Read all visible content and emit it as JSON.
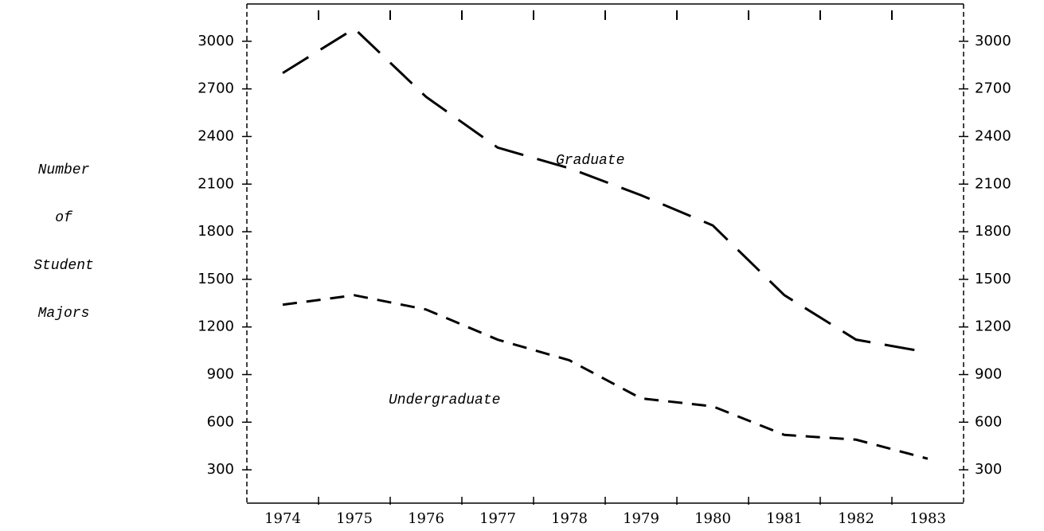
{
  "chart_data": {
    "type": "line",
    "ylabel": [
      "Number",
      "of",
      "Student",
      "Majors"
    ],
    "categories": [
      "1974",
      "1975",
      "1976",
      "1977",
      "1978",
      "1979",
      "1980",
      "1981",
      "1982",
      "1983"
    ],
    "series": [
      {
        "name": "Graduate",
        "color": "#000000",
        "dash": "long",
        "values": [
          2800,
          3080,
          2650,
          2330,
          2200,
          2030,
          1840,
          1400,
          1120,
          1040
        ]
      },
      {
        "name": "Undergraduate",
        "color": "#000000",
        "dash": "short",
        "values": [
          1340,
          1400,
          1310,
          1120,
          990,
          750,
          700,
          520,
          490,
          370
        ]
      }
    ],
    "ylim": [
      90,
      3235
    ],
    "yticks": [
      300,
      600,
      900,
      1200,
      1500,
      1800,
      2100,
      2400,
      2700,
      3000
    ],
    "grid": false
  }
}
